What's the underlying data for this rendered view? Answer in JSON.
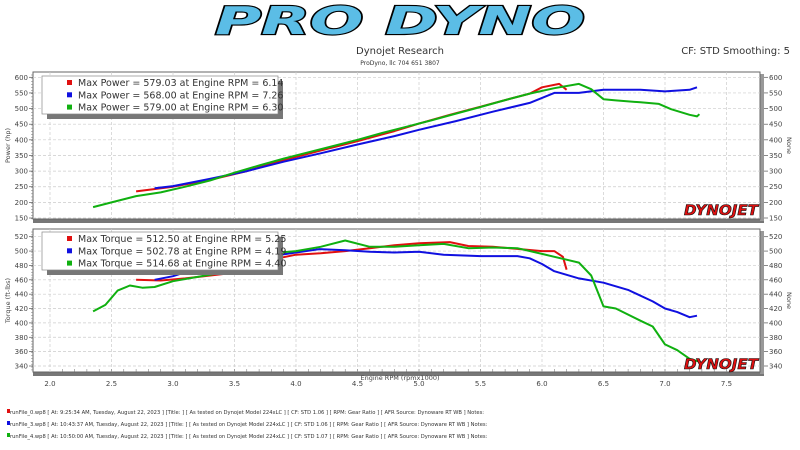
{
  "header": {
    "logo_text": "PRO DYNO",
    "company": "Dynojet Research",
    "subtitle": "ProDyno, llc 704 651 3807",
    "cf_smoothing": "CF: STD Smoothing: 5"
  },
  "colors": {
    "run0": "#e01010",
    "run3": "#1010e0",
    "run4": "#10b010",
    "logo": "#5bbde6"
  },
  "watermark": "DYNOJET",
  "chart_data": [
    {
      "type": "line",
      "title": "Power",
      "ylabel": "Power (hp)",
      "ylabel_right": "None",
      "xlim": [
        1.9,
        7.85
      ],
      "ylim": [
        150,
        600
      ],
      "yticks": [
        150,
        200,
        250,
        300,
        350,
        400,
        450,
        500,
        550,
        600
      ],
      "grid": true,
      "legend_placement": "top-left",
      "legend": [
        "Max Power = 579.03 at Engine RPM = 6.14",
        "Max Power = 568.00 at Engine RPM = 7.26",
        "Max Power = 579.00 at Engine RPM = 6.30"
      ],
      "series": [
        {
          "name": "runFile_0",
          "color": "#e01010",
          "points": [
            [
              2.7,
              235
            ],
            [
              3.0,
              250
            ],
            [
              3.3,
              272
            ],
            [
              3.6,
              300
            ],
            [
              3.9,
              335
            ],
            [
              4.2,
              366
            ],
            [
              4.5,
              396
            ],
            [
              4.8,
              428
            ],
            [
              5.0,
              452
            ],
            [
              5.25,
              480
            ],
            [
              5.5,
              506
            ],
            [
              5.7,
              527
            ],
            [
              5.9,
              548
            ],
            [
              6.0,
              568
            ],
            [
              6.14,
              579
            ],
            [
              6.2,
              560
            ]
          ]
        },
        {
          "name": "runFile_3",
          "color": "#1010e0",
          "points": [
            [
              2.85,
              245
            ],
            [
              3.0,
              252
            ],
            [
              3.3,
              275
            ],
            [
              3.6,
              300
            ],
            [
              3.9,
              330
            ],
            [
              4.2,
              357
            ],
            [
              4.5,
              385
            ],
            [
              4.8,
              412
            ],
            [
              5.0,
              432
            ],
            [
              5.3,
              460
            ],
            [
              5.6,
              490
            ],
            [
              5.9,
              518
            ],
            [
              6.1,
              550
            ],
            [
              6.3,
              550
            ],
            [
              6.5,
              560
            ],
            [
              6.8,
              560
            ],
            [
              7.0,
              555
            ],
            [
              7.2,
              560
            ],
            [
              7.26,
              568
            ]
          ]
        },
        {
          "name": "runFile_4",
          "color": "#10b010",
          "points": [
            [
              2.35,
              185
            ],
            [
              2.5,
              200
            ],
            [
              2.7,
              220
            ],
            [
              2.9,
              232
            ],
            [
              3.1,
              250
            ],
            [
              3.3,
              270
            ],
            [
              3.5,
              295
            ],
            [
              3.7,
              318
            ],
            [
              3.9,
              340
            ],
            [
              4.1,
              360
            ],
            [
              4.3,
              380
            ],
            [
              4.5,
              400
            ],
            [
              4.7,
              422
            ],
            [
              4.9,
              442
            ],
            [
              5.1,
              462
            ],
            [
              5.3,
              484
            ],
            [
              5.5,
              505
            ],
            [
              5.7,
              527
            ],
            [
              5.9,
              548
            ],
            [
              6.1,
              565
            ],
            [
              6.3,
              579
            ],
            [
              6.4,
              562
            ],
            [
              6.5,
              530
            ],
            [
              6.6,
              526
            ],
            [
              6.8,
              520
            ],
            [
              6.95,
              515
            ],
            [
              7.05,
              498
            ],
            [
              7.2,
              480
            ],
            [
              7.26,
              475
            ],
            [
              7.28,
              482
            ]
          ]
        }
      ]
    },
    {
      "type": "line",
      "title": "Torque",
      "xlabel": "Engine RPM (rpmx1000)",
      "ylabel": "Torque (ft-lbs)",
      "ylabel_right": "None",
      "xlim": [
        1.9,
        7.85
      ],
      "xticks": [
        2.0,
        2.5,
        3.0,
        3.5,
        4.0,
        4.5,
        5.0,
        5.5,
        6.0,
        6.5,
        7.0,
        7.5
      ],
      "ylim": [
        340,
        520
      ],
      "yticks": [
        340,
        360,
        380,
        400,
        420,
        440,
        460,
        480,
        500,
        520
      ],
      "grid": true,
      "legend_placement": "top-left",
      "legend": [
        "Max Torque = 512.50 at Engine RPM = 5.25",
        "Max Torque = 502.78 at Engine RPM = 4.19",
        "Max Torque = 514.68 at Engine RPM = 4.40"
      ],
      "series": [
        {
          "name": "runFile_0",
          "color": "#e01010",
          "points": [
            [
              2.7,
              460
            ],
            [
              2.9,
              459
            ],
            [
              3.1,
              462
            ],
            [
              3.4,
              468
            ],
            [
              3.6,
              475
            ],
            [
              3.8,
              488
            ],
            [
              4.0,
              495
            ],
            [
              4.2,
              497
            ],
            [
              4.4,
              500
            ],
            [
              4.6,
              504
            ],
            [
              4.8,
              508
            ],
            [
              5.0,
              511
            ],
            [
              5.25,
              512.5
            ],
            [
              5.4,
              507
            ],
            [
              5.6,
              506
            ],
            [
              5.8,
              503
            ],
            [
              6.0,
              500
            ],
            [
              6.1,
              500
            ],
            [
              6.17,
              492
            ],
            [
              6.2,
              474
            ]
          ]
        },
        {
          "name": "runFile_3",
          "color": "#1010e0",
          "points": [
            [
              2.85,
              460
            ],
            [
              3.0,
              465
            ],
            [
              3.2,
              476
            ],
            [
              3.5,
              483
            ],
            [
              3.8,
              493
            ],
            [
              4.0,
              498
            ],
            [
              4.19,
              502.8
            ],
            [
              4.4,
              501
            ],
            [
              4.6,
              499
            ],
            [
              4.8,
              498
            ],
            [
              5.0,
              499
            ],
            [
              5.2,
              495
            ],
            [
              5.5,
              493
            ],
            [
              5.8,
              493
            ],
            [
              5.9,
              490
            ],
            [
              6.0,
              482
            ],
            [
              6.1,
              472
            ],
            [
              6.3,
              462
            ],
            [
              6.5,
              456
            ],
            [
              6.7,
              446
            ],
            [
              6.9,
              430
            ],
            [
              7.0,
              420
            ],
            [
              7.1,
              415
            ],
            [
              7.2,
              408
            ],
            [
              7.26,
              410
            ]
          ]
        },
        {
          "name": "runFile_4",
          "color": "#10b010",
          "points": [
            [
              2.35,
              416
            ],
            [
              2.45,
              425
            ],
            [
              2.55,
              445
            ],
            [
              2.65,
              452
            ],
            [
              2.75,
              449
            ],
            [
              2.85,
              450
            ],
            [
              3.0,
              458
            ],
            [
              3.2,
              464
            ],
            [
              3.4,
              470
            ],
            [
              3.6,
              478
            ],
            [
              3.8,
              497
            ],
            [
              4.0,
              500
            ],
            [
              4.2,
              506
            ],
            [
              4.4,
              514.7
            ],
            [
              4.6,
              506
            ],
            [
              4.8,
              506
            ],
            [
              5.0,
              508
            ],
            [
              5.2,
              510
            ],
            [
              5.4,
              504
            ],
            [
              5.6,
              505
            ],
            [
              5.8,
              504
            ],
            [
              6.0,
              496
            ],
            [
              6.2,
              488
            ],
            [
              6.3,
              484
            ],
            [
              6.4,
              466
            ],
            [
              6.5,
              423
            ],
            [
              6.6,
              420
            ],
            [
              6.8,
              403
            ],
            [
              6.9,
              395
            ],
            [
              7.0,
              370
            ],
            [
              7.1,
              362
            ],
            [
              7.2,
              350
            ],
            [
              7.28,
              346
            ]
          ]
        }
      ]
    }
  ],
  "footer": [
    "runFile_0.wp8 [ At:  9:25:34 AM, Tuesday, August 22, 2023 ] [Title:  ]   [ As tested on Dynojet Model 224xLC ] [ CF: STD 1.06 ] [ RPM: Gear Ratio ] [ AFR Source: Dynoware RT WB ] Notes:",
    "runFile_3.wp8 [ At:  10:43:37 AM, Tuesday, August 22, 2023 ] [Title:  ]   [ As tested on Dynojet Model 224xLC ] [ CF: STD 1.06 ] [ RPM: Gear Ratio ] [ AFR Source: Dynoware RT WB ] Notes:",
    "runFile_4.wp8 [ At:  10:50:00 AM, Tuesday, August 22, 2023 ] [Title:  ]   [ As tested on Dynojet Model 224xLC ] [ CF: STD 1.07 ] [ RPM: Gear Ratio ] [ AFR Source: Dynoware RT WB ] Notes:"
  ]
}
